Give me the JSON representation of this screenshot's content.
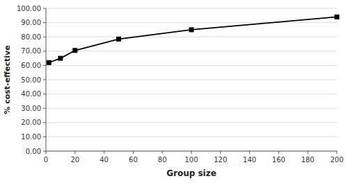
{
  "chart_data": {
    "type": "line",
    "x": [
      2,
      10,
      20,
      50,
      100,
      200
    ],
    "values": [
      62.0,
      65.0,
      70.5,
      78.5,
      85.0,
      94.0
    ],
    "color": "#000000",
    "marker": "square",
    "xlabel": "Group size",
    "ylabel": "% cost-effective",
    "xlim": [
      0,
      200
    ],
    "ylim": [
      0.0,
      100.0
    ],
    "xticks": [
      0,
      20,
      40,
      60,
      80,
      100,
      120,
      140,
      160,
      180,
      200
    ],
    "yticks": [
      {
        "value": 0.0,
        "label": "0.00"
      },
      {
        "value": 10.0,
        "label": "10.00"
      },
      {
        "value": 20.0,
        "label": "20.00"
      },
      {
        "value": 30.0,
        "label": "30.00"
      },
      {
        "value": 40.0,
        "label": "40.00"
      },
      {
        "value": 50.0,
        "label": "50.00"
      },
      {
        "value": 60.0,
        "label": "60.00"
      },
      {
        "value": 70.0,
        "label": "70.00"
      },
      {
        "value": 80.0,
        "label": "80.00"
      },
      {
        "value": 90.0,
        "label": "90.00"
      },
      {
        "value": 100.0,
        "label": "100.00"
      }
    ],
    "grid": "y"
  }
}
